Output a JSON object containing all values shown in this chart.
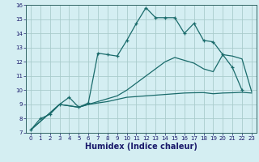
{
  "xlabel": "Humidex (Indice chaleur)",
  "bg_color": "#d4eef2",
  "grid_color": "#aacccc",
  "line_color": "#1a6b6b",
  "xlim": [
    -0.5,
    23.5
  ],
  "ylim": [
    7,
    16
  ],
  "xticks": [
    0,
    1,
    2,
    3,
    4,
    5,
    6,
    7,
    8,
    9,
    10,
    11,
    12,
    13,
    14,
    15,
    16,
    17,
    18,
    19,
    20,
    21,
    22,
    23
  ],
  "yticks": [
    7,
    8,
    9,
    10,
    11,
    12,
    13,
    14,
    15,
    16
  ],
  "series": [
    {
      "x": [
        0,
        1,
        2,
        3,
        4,
        5,
        6,
        7,
        8,
        9,
        10,
        11,
        12,
        13,
        14,
        15,
        16,
        17,
        18,
        19,
        20,
        21,
        22
      ],
      "y": [
        7.2,
        8.0,
        8.3,
        9.0,
        9.5,
        8.8,
        9.1,
        12.6,
        12.5,
        12.4,
        13.5,
        14.7,
        15.8,
        15.1,
        15.1,
        15.1,
        14.0,
        14.7,
        13.5,
        13.4,
        12.5,
        11.6,
        10.0
      ],
      "marker": true
    },
    {
      "x": [
        0,
        3,
        4,
        5,
        6,
        7,
        8,
        9,
        10,
        11,
        12,
        13,
        14,
        15,
        16,
        17,
        18,
        19,
        20,
        21,
        22,
        23
      ],
      "y": [
        7.2,
        9.0,
        8.9,
        8.8,
        9.0,
        9.1,
        9.2,
        9.35,
        9.5,
        9.55,
        9.6,
        9.65,
        9.7,
        9.75,
        9.8,
        9.82,
        9.83,
        9.75,
        9.8,
        9.82,
        9.85,
        9.8
      ],
      "marker": false
    },
    {
      "x": [
        0,
        3,
        4,
        5,
        6,
        7,
        8,
        9,
        10,
        11,
        12,
        13,
        14,
        15,
        16,
        17,
        18,
        19,
        20,
        21,
        22,
        23
      ],
      "y": [
        7.2,
        9.0,
        8.9,
        8.8,
        9.0,
        9.2,
        9.4,
        9.6,
        10.0,
        10.5,
        11.0,
        11.5,
        12.0,
        12.3,
        12.1,
        11.9,
        11.5,
        11.3,
        12.5,
        12.4,
        12.2,
        9.9
      ],
      "marker": false
    }
  ],
  "xlabel_color": "#1a1a6b",
  "xlabel_fontsize": 7,
  "tick_fontsize": 5,
  "tick_color": "#1a1a6b",
  "spine_color": "#336666"
}
